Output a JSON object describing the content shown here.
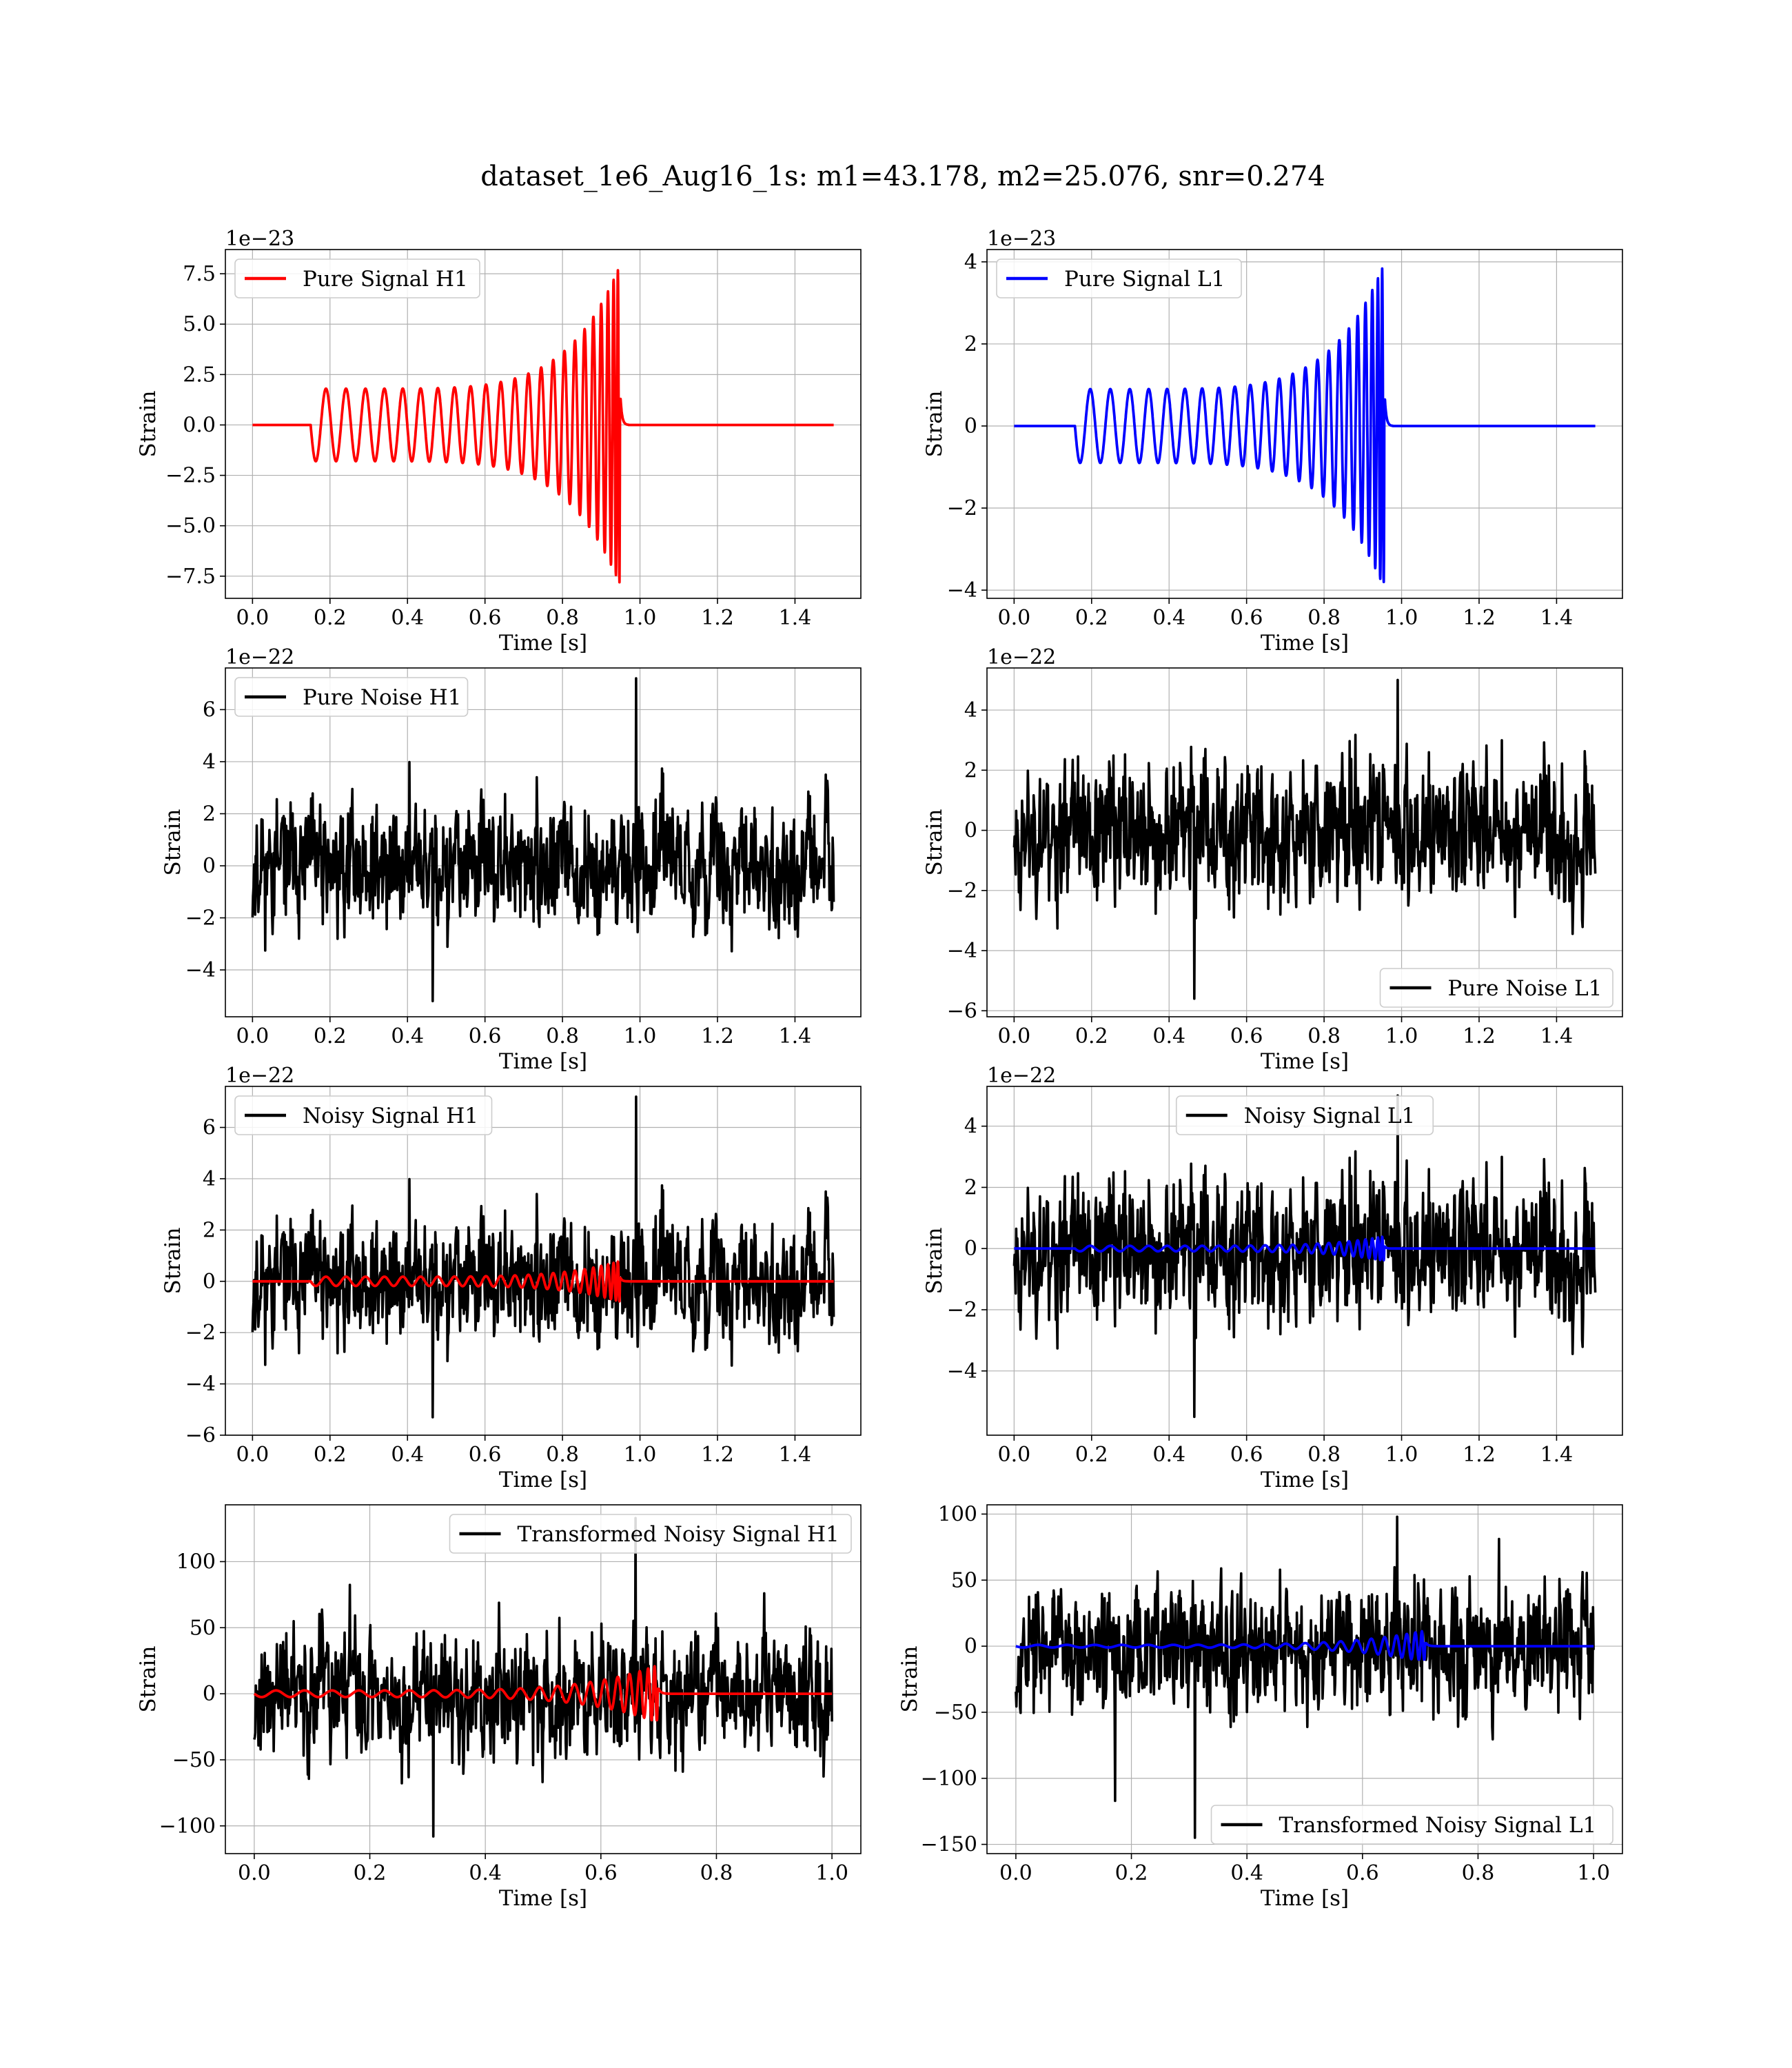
{
  "figure": {
    "title": "dataset_1e6_Aug16_1s: m1=43.178, m2=25.076, snr=0.274"
  },
  "colors": {
    "h1_signal": "#ff0000",
    "l1_signal": "#0000ff",
    "noise": "#000000",
    "grid": "#b0b0b0"
  },
  "chart_data": [
    {
      "id": "pure-signal-h1",
      "type": "line",
      "xlabel": "Time [s]",
      "ylabel": "Strain",
      "offset_text": "1e−23",
      "xlim": [
        -0.07,
        1.57
      ],
      "ylim": [
        -8.6,
        8.7
      ],
      "xticks": [
        0.0,
        0.2,
        0.4,
        0.6,
        0.8,
        1.0,
        1.2,
        1.4
      ],
      "xtick_labels": [
        "0.0",
        "0.2",
        "0.4",
        "0.6",
        "0.8",
        "1.0",
        "1.2",
        "1.4"
      ],
      "yticks": [
        -7.5,
        -5.0,
        -2.5,
        0.0,
        2.5,
        5.0,
        7.5
      ],
      "ytick_labels": [
        "−7.5",
        "−5.0",
        "−2.5",
        "0.0",
        "2.5",
        "5.0",
        "7.5"
      ],
      "grid": true,
      "legend_placement": "upper left",
      "series": [
        {
          "name": "Pure Signal H1",
          "color": "#ff0000",
          "kind": "chirp",
          "x_start": 0.0,
          "x_end": 1.5,
          "t_start": 0.15,
          "t_merge": 0.95,
          "amp_start": 1.8,
          "amp_peak": 8.0,
          "amp_min": -7.8,
          "cycles": 24
        }
      ]
    },
    {
      "id": "pure-signal-l1",
      "type": "line",
      "xlabel": "Time [s]",
      "ylabel": "Strain",
      "offset_text": "1e−23",
      "xlim": [
        -0.07,
        1.57
      ],
      "ylim": [
        -4.2,
        4.3
      ],
      "xticks": [
        0.0,
        0.2,
        0.4,
        0.6,
        0.8,
        1.0,
        1.2,
        1.4
      ],
      "xtick_labels": [
        "0.0",
        "0.2",
        "0.4",
        "0.6",
        "0.8",
        "1.0",
        "1.2",
        "1.4"
      ],
      "yticks": [
        -4,
        -2,
        0,
        2,
        4
      ],
      "ytick_labels": [
        "−4",
        "−2",
        "0",
        "2",
        "4"
      ],
      "grid": true,
      "legend_placement": "upper left",
      "series": [
        {
          "name": "Pure Signal L1",
          "color": "#0000ff",
          "kind": "chirp",
          "x_start": 0.0,
          "x_end": 1.5,
          "t_start": 0.157,
          "t_merge": 0.957,
          "amp_start": 0.9,
          "amp_peak": 4.0,
          "amp_min": -3.8,
          "cycles": 24
        }
      ]
    },
    {
      "id": "pure-noise-h1",
      "type": "line",
      "xlabel": "Time [s]",
      "ylabel": "Strain",
      "offset_text": "1e−22",
      "xlim": [
        -0.07,
        1.57
      ],
      "ylim": [
        -5.8,
        7.6
      ],
      "xticks": [
        0.0,
        0.2,
        0.4,
        0.6,
        0.8,
        1.0,
        1.2,
        1.4
      ],
      "xtick_labels": [
        "0.0",
        "0.2",
        "0.4",
        "0.6",
        "0.8",
        "1.0",
        "1.2",
        "1.4"
      ],
      "yticks": [
        -4,
        -2,
        0,
        2,
        4,
        6
      ],
      "ytick_labels": [
        "−4",
        "−2",
        "0",
        "2",
        "4",
        "6"
      ],
      "grid": true,
      "legend_placement": "upper left",
      "series": [
        {
          "name": "Pure Noise H1",
          "color": "#000000",
          "kind": "noise",
          "x_start": 0.0,
          "x_end": 1.5,
          "seed": 11,
          "sigma": 1.5,
          "max": 7.2,
          "min": -5.2,
          "n": 1100
        }
      ]
    },
    {
      "id": "pure-noise-l1",
      "type": "line",
      "xlabel": "Time [s]",
      "ylabel": "Strain",
      "offset_text": "1e−22",
      "xlim": [
        -0.07,
        1.57
      ],
      "ylim": [
        -6.2,
        5.4
      ],
      "xticks": [
        0.0,
        0.2,
        0.4,
        0.6,
        0.8,
        1.0,
        1.2,
        1.4
      ],
      "xtick_labels": [
        "0.0",
        "0.2",
        "0.4",
        "0.6",
        "0.8",
        "1.0",
        "1.2",
        "1.4"
      ],
      "yticks": [
        -6,
        -4,
        -2,
        0,
        2,
        4
      ],
      "ytick_labels": [
        "−6",
        "−4",
        "−2",
        "0",
        "2",
        "4"
      ],
      "grid": true,
      "legend_placement": "lower right",
      "series": [
        {
          "name": "Pure Noise L1",
          "color": "#000000",
          "kind": "noise",
          "x_start": 0.0,
          "x_end": 1.5,
          "seed": 23,
          "sigma": 1.5,
          "max": 5.0,
          "min": -5.6,
          "n": 1100
        }
      ]
    },
    {
      "id": "noisy-signal-h1",
      "type": "line",
      "xlabel": "Time [s]",
      "ylabel": "Strain",
      "offset_text": "1e−22",
      "xlim": [
        -0.07,
        1.57
      ],
      "ylim": [
        -6.0,
        7.6
      ],
      "xticks": [
        0.0,
        0.2,
        0.4,
        0.6,
        0.8,
        1.0,
        1.2,
        1.4
      ],
      "xtick_labels": [
        "0.0",
        "0.2",
        "0.4",
        "0.6",
        "0.8",
        "1.0",
        "1.2",
        "1.4"
      ],
      "yticks": [
        -6,
        -4,
        -2,
        0,
        2,
        4,
        6
      ],
      "ytick_labels": [
        "−6",
        "−4",
        "−2",
        "0",
        "2",
        "4",
        "6"
      ],
      "grid": true,
      "legend_placement": "upper left",
      "series": [
        {
          "name": "Noisy Signal H1",
          "color": "#000000",
          "kind": "noise",
          "x_start": 0.0,
          "x_end": 1.5,
          "seed": 11,
          "sigma": 1.5,
          "max": 7.2,
          "min": -5.3,
          "n": 1100
        },
        {
          "name": "",
          "color": "#ff0000",
          "kind": "chirp",
          "x_start": 0.0,
          "x_end": 1.5,
          "t_start": 0.15,
          "t_merge": 0.95,
          "amp_start": 0.18,
          "amp_peak": 0.8,
          "amp_min": -0.78,
          "cycles": 24
        }
      ]
    },
    {
      "id": "noisy-signal-l1",
      "type": "line",
      "xlabel": "Time [s]",
      "ylabel": "Strain",
      "offset_text": "1e−22",
      "xlim": [
        -0.07,
        1.57
      ],
      "ylim": [
        -6.1,
        5.3
      ],
      "xticks": [
        0.0,
        0.2,
        0.4,
        0.6,
        0.8,
        1.0,
        1.2,
        1.4
      ],
      "xtick_labels": [
        "0.0",
        "0.2",
        "0.4",
        "0.6",
        "0.8",
        "1.0",
        "1.2",
        "1.4"
      ],
      "yticks": [
        -4,
        -2,
        0,
        2,
        4
      ],
      "ytick_labels": [
        "−4",
        "−2",
        "0",
        "2",
        "4"
      ],
      "grid": true,
      "legend_placement": "upper center",
      "series": [
        {
          "name": "Noisy Signal L1",
          "color": "#000000",
          "kind": "noise",
          "x_start": 0.0,
          "x_end": 1.5,
          "seed": 23,
          "sigma": 1.5,
          "max": 5.0,
          "min": -5.5,
          "n": 1100
        },
        {
          "name": "",
          "color": "#0000ff",
          "kind": "chirp",
          "x_start": 0.0,
          "x_end": 1.5,
          "t_start": 0.157,
          "t_merge": 0.957,
          "amp_start": 0.09,
          "amp_peak": 0.4,
          "amp_min": -0.38,
          "cycles": 24
        }
      ]
    },
    {
      "id": "transformed-noisy-signal-h1",
      "type": "line",
      "xlabel": "Time [s]",
      "ylabel": "Strain",
      "offset_text": "",
      "xlim": [
        -0.05,
        1.05
      ],
      "ylim": [
        -121,
        143
      ],
      "xticks": [
        0.0,
        0.2,
        0.4,
        0.6,
        0.8,
        1.0
      ],
      "xtick_labels": [
        "0.0",
        "0.2",
        "0.4",
        "0.6",
        "0.8",
        "1.0"
      ],
      "yticks": [
        -100,
        -50,
        0,
        50,
        100
      ],
      "ytick_labels": [
        "−100",
        "−50",
        "0",
        "50",
        "100"
      ],
      "grid": true,
      "legend_placement": "upper right",
      "series": [
        {
          "name": "Transformed Noisy Signal H1",
          "color": "#000000",
          "kind": "noise",
          "x_start": 0.0,
          "x_end": 1.0,
          "seed": 37,
          "sigma": 30,
          "max": 133,
          "min": -108,
          "n": 1100
        },
        {
          "name": "",
          "color": "#ff0000",
          "kind": "chirp",
          "x_start": 0.0,
          "x_end": 1.0,
          "t_start": 0.0,
          "t_merge": 0.7,
          "amp_start": 2.5,
          "amp_peak": 22,
          "amp_min": -20,
          "cycles": 22
        }
      ]
    },
    {
      "id": "transformed-noisy-signal-l1",
      "type": "line",
      "xlabel": "Time [s]",
      "ylabel": "Strain",
      "offset_text": "",
      "xlim": [
        -0.05,
        1.05
      ],
      "ylim": [
        -157,
        107
      ],
      "xticks": [
        0.0,
        0.2,
        0.4,
        0.6,
        0.8,
        1.0
      ],
      "xtick_labels": [
        "0.0",
        "0.2",
        "0.4",
        "0.6",
        "0.8",
        "1.0"
      ],
      "yticks": [
        -150,
        -100,
        -50,
        0,
        50,
        100
      ],
      "ytick_labels": [
        "−150",
        "−100",
        "−50",
        "0",
        "50",
        "100"
      ],
      "grid": true,
      "legend_placement": "lower right",
      "series": [
        {
          "name": "Transformed Noisy Signal L1",
          "color": "#000000",
          "kind": "noise",
          "x_start": 0.0,
          "x_end": 1.0,
          "seed": 53,
          "sigma": 30,
          "max": 98,
          "min": -145,
          "n": 1100
        },
        {
          "name": "",
          "color": "#0000ff",
          "kind": "chirp",
          "x_start": 0.0,
          "x_end": 1.0,
          "t_start": 0.0,
          "t_merge": 0.71,
          "amp_start": 1.0,
          "amp_peak": 12,
          "amp_min": -10,
          "cycles": 22
        }
      ]
    }
  ]
}
